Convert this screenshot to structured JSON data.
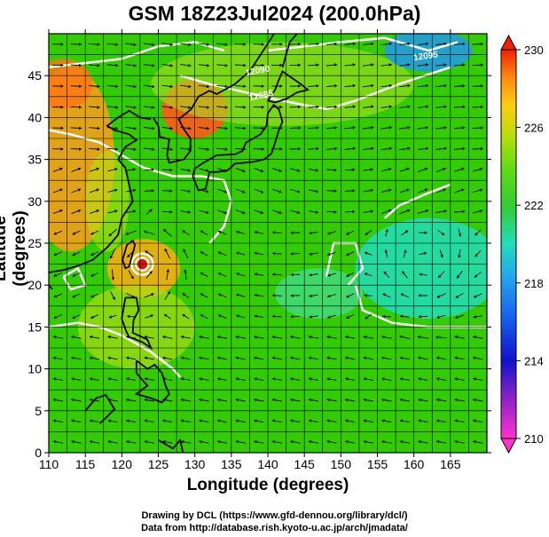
{
  "title": "GSM 18Z23Jul2024 (200.0hPa)",
  "credits": {
    "line1": "Drawing by DCL (https://www.gfd-dennou.org/library/dcl/)",
    "line2": "Data from http://database.rish.kyoto-u.ac.jp/arch/jmadata/"
  },
  "chart_data": {
    "type": "heatmap",
    "xlabel": "Longitude (degrees)",
    "ylabel": "Latitude  (degrees)",
    "xlim": [
      110,
      170
    ],
    "ylim": [
      0,
      50
    ],
    "x_ticks": [
      110,
      115,
      120,
      125,
      130,
      135,
      140,
      145,
      150,
      155,
      160,
      165
    ],
    "y_ticks": [
      0,
      5,
      10,
      15,
      20,
      25,
      30,
      35,
      40,
      45
    ],
    "colorbar": {
      "min": 210,
      "max": 230,
      "ticks": [
        210,
        214,
        218,
        222,
        226,
        230
      ]
    },
    "contour_labels": [
      "12095",
      "12090",
      "12085"
    ],
    "colors": {
      "ocean_green": "#33cc00",
      "coast": "#000000",
      "contour": "#ffffff",
      "vectors": "#000000"
    }
  }
}
